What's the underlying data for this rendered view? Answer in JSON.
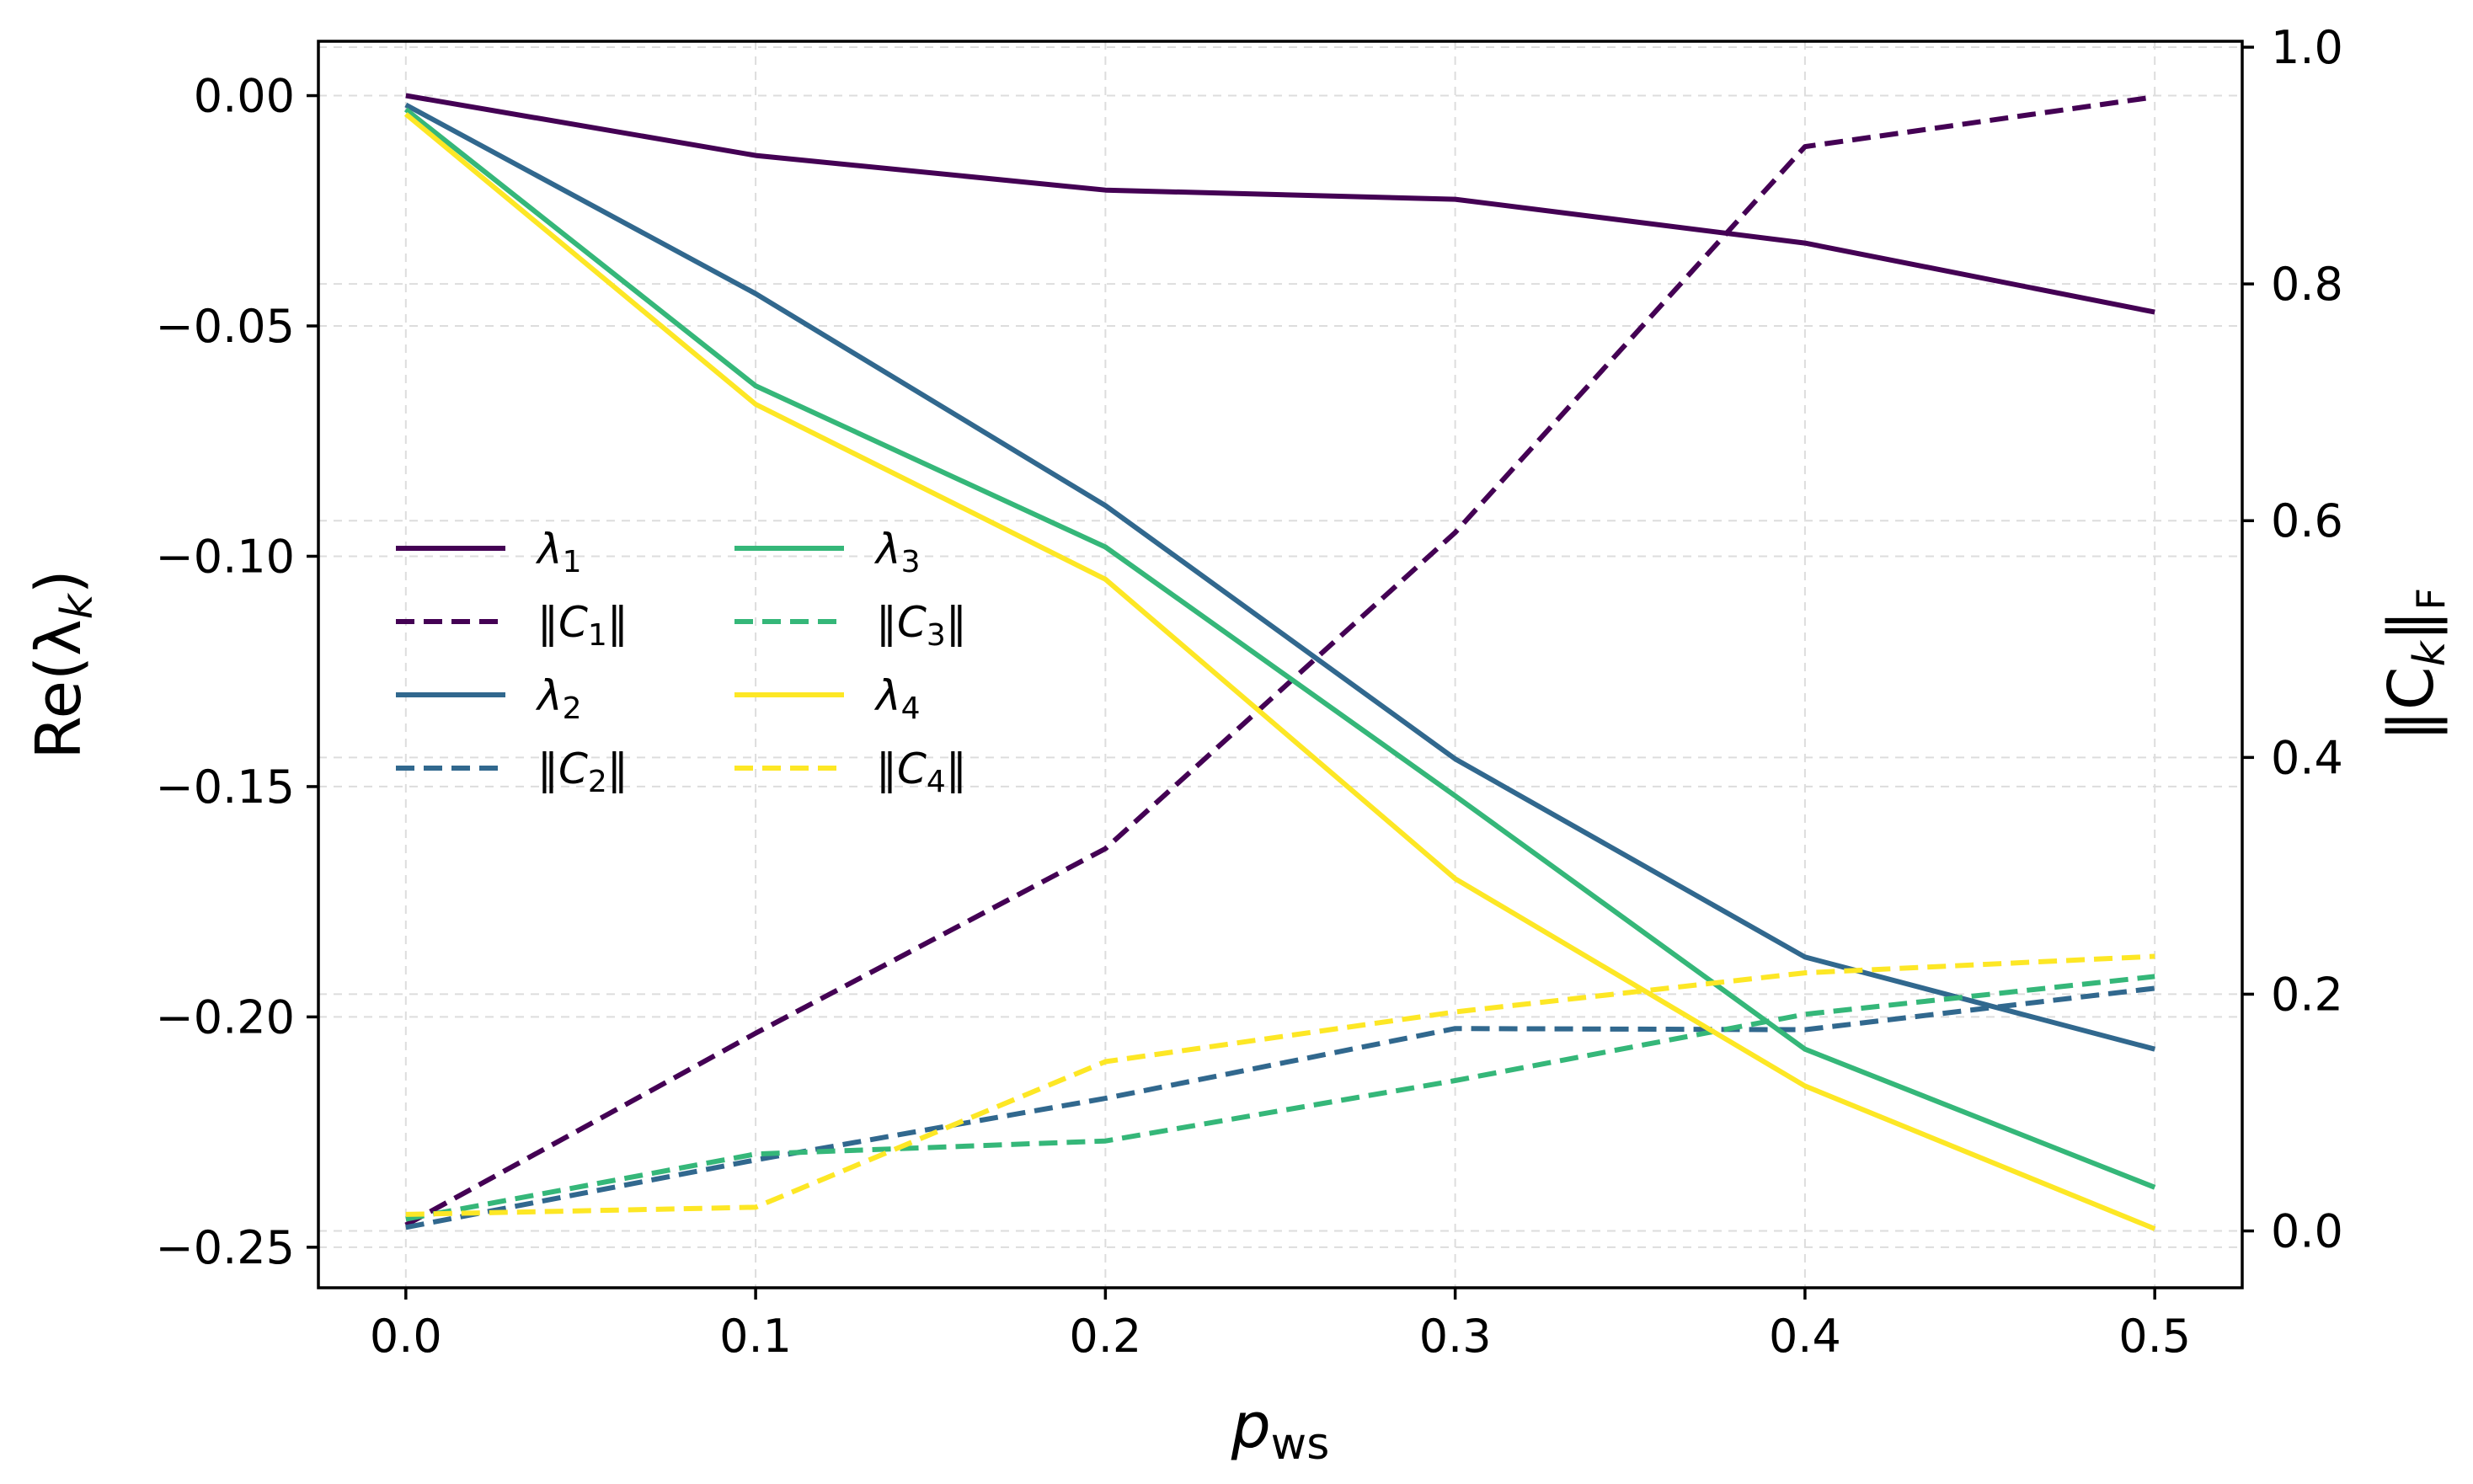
{
  "chart_data": {
    "type": "line",
    "title": "",
    "xlabel": "p",
    "xlabel_sub": "ws",
    "ylabel_left": "Re(λ",
    "ylabel_left_sub": "k",
    "ylabel_left_close": ")",
    "ylabel_right": "‖C",
    "ylabel_right_sub": "k",
    "ylabel_right_close": "‖",
    "ylabel_right_sub2": "F",
    "x": [
      0.0,
      0.1,
      0.2,
      0.3,
      0.4,
      0.5
    ],
    "xlim": [
      -0.025,
      0.525
    ],
    "ylim_left": [
      -0.2588,
      0.0118
    ],
    "ylim_right": [
      -0.048,
      1.005
    ],
    "xticks": [
      "0.0",
      "0.1",
      "0.2",
      "0.3",
      "0.4",
      "0.5"
    ],
    "xtick_values": [
      0.0,
      0.1,
      0.2,
      0.3,
      0.4,
      0.5
    ],
    "yticks_left": [
      "0.00",
      "−0.05",
      "−0.10",
      "−0.15",
      "−0.20",
      "−0.25"
    ],
    "ytick_values_left": [
      0.0,
      -0.05,
      -0.1,
      -0.15,
      -0.2,
      -0.25
    ],
    "yticks_right": [
      "1.0",
      "0.8",
      "0.6",
      "0.4",
      "0.2",
      "0.0"
    ],
    "ytick_values_right": [
      1.0,
      0.8,
      0.6,
      0.4,
      0.2,
      0.0
    ],
    "grid": true,
    "legend_position": "center-left",
    "series": [
      {
        "name": "λ",
        "sub": "1",
        "axis": "left",
        "style": "solid",
        "color": "#440154",
        "values": [
          0.0,
          -0.013,
          -0.0205,
          -0.0225,
          -0.032,
          -0.047
        ]
      },
      {
        "name": "‖C",
        "sub": "1",
        "close": "‖",
        "axis": "right",
        "style": "dashed",
        "color": "#440154",
        "values": [
          0.005,
          0.167,
          0.323,
          0.59,
          0.916,
          0.958
        ]
      },
      {
        "name": "λ",
        "sub": "2",
        "axis": "left",
        "style": "solid",
        "color": "#31688e",
        "values": [
          -0.002,
          -0.043,
          -0.089,
          -0.144,
          -0.187,
          -0.207
        ]
      },
      {
        "name": "‖C",
        "sub": "2",
        "close": "‖",
        "axis": "right",
        "style": "dashed",
        "color": "#31688e",
        "values": [
          0.003,
          0.06,
          0.112,
          0.171,
          0.17,
          0.205
        ]
      },
      {
        "name": "λ",
        "sub": "3",
        "axis": "left",
        "style": "solid",
        "color": "#35b779",
        "values": [
          -0.003,
          -0.063,
          -0.098,
          -0.152,
          -0.207,
          -0.237
        ]
      },
      {
        "name": "‖C",
        "sub": "3",
        "close": "‖",
        "axis": "right",
        "style": "dashed",
        "color": "#35b779",
        "values": [
          0.01,
          0.065,
          0.076,
          0.127,
          0.183,
          0.215
        ]
      },
      {
        "name": "λ",
        "sub": "4",
        "axis": "left",
        "style": "solid",
        "color": "#fde725",
        "values": [
          -0.004,
          -0.067,
          -0.105,
          -0.17,
          -0.215,
          -0.246
        ]
      },
      {
        "name": "‖C",
        "sub": "4",
        "close": "‖",
        "axis": "right",
        "style": "dashed",
        "color": "#fde725",
        "values": [
          0.014,
          0.02,
          0.143,
          0.185,
          0.218,
          0.232
        ]
      }
    ]
  }
}
